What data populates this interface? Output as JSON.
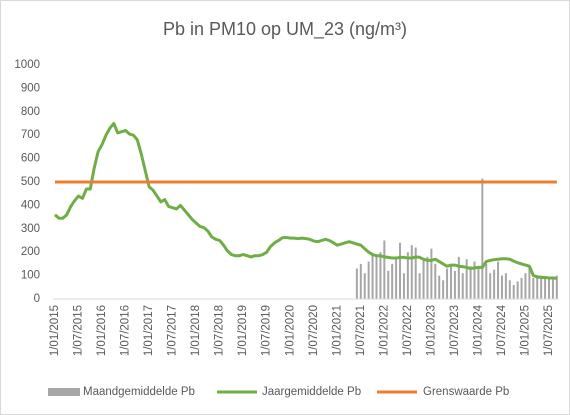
{
  "chart_data": {
    "type": "combo",
    "title": "Pb in PM10 op UM_23 (ng/m³)",
    "legend": "bottom",
    "ylim": [
      0,
      1000
    ],
    "yticks": [
      0,
      100,
      200,
      300,
      400,
      500,
      600,
      700,
      800,
      900,
      1000
    ],
    "grid": false,
    "categories": [
      "1/01/2015",
      null,
      null,
      null,
      null,
      null,
      "1/07/2015",
      null,
      null,
      null,
      null,
      null,
      "1/01/2016",
      null,
      null,
      null,
      null,
      null,
      "1/07/2016",
      null,
      null,
      null,
      null,
      null,
      "1/01/2017",
      null,
      null,
      null,
      null,
      null,
      "1/07/2017",
      null,
      null,
      null,
      null,
      null,
      "1/01/2018",
      null,
      null,
      null,
      null,
      null,
      "1/07/2018",
      null,
      null,
      null,
      null,
      null,
      "1/01/2019",
      null,
      null,
      null,
      null,
      null,
      "1/07/2019",
      null,
      null,
      null,
      null,
      null,
      "1/01/2020",
      null,
      null,
      null,
      null,
      null,
      "1/07/2020",
      null,
      null,
      null,
      null,
      null,
      "1/01/2021",
      null,
      null,
      null,
      null,
      null,
      "1/07/2021",
      null,
      null,
      null,
      null,
      null,
      "1/01/2022",
      null,
      null,
      null,
      null,
      null,
      "1/07/2022",
      null,
      null,
      null,
      null,
      null,
      "1/01/2023",
      null,
      null,
      null,
      null,
      null,
      "1/07/2023",
      null,
      null,
      null,
      null,
      null,
      "1/01/2024",
      null,
      null,
      null,
      null,
      null,
      "1/07/2024",
      null,
      null,
      null,
      null,
      null,
      "1/01/2025",
      null,
      null,
      null,
      null,
      null,
      "1/07/2025",
      null,
      null
    ],
    "series": [
      {
        "name": "Maandgemiddelde Pb",
        "type": "bar",
        "color": "#a6a6a6",
        "values": [
          null,
          null,
          null,
          null,
          null,
          null,
          null,
          null,
          null,
          null,
          null,
          null,
          null,
          null,
          null,
          null,
          null,
          null,
          null,
          null,
          null,
          null,
          null,
          null,
          null,
          null,
          null,
          null,
          null,
          null,
          null,
          null,
          null,
          null,
          null,
          null,
          null,
          null,
          null,
          null,
          null,
          null,
          null,
          null,
          null,
          null,
          null,
          null,
          null,
          null,
          null,
          null,
          null,
          null,
          null,
          null,
          null,
          null,
          null,
          null,
          null,
          null,
          null,
          null,
          null,
          null,
          null,
          null,
          null,
          null,
          null,
          null,
          null,
          null,
          null,
          null,
          null,
          130,
          150,
          110,
          160,
          190,
          180,
          200,
          250,
          120,
          150,
          180,
          240,
          110,
          200,
          230,
          220,
          110,
          170,
          180,
          215,
          150,
          100,
          80,
          130,
          140,
          120,
          180,
          110,
          170,
          140,
          160,
          130,
          515,
          150,
          110,
          125,
          160,
          100,
          110,
          80,
          60,
          75,
          90,
          110,
          140,
          90,
          95,
          100,
          90,
          85,
          95,
          100
        ]
      },
      {
        "name": "Jaargemiddelde Pb",
        "type": "line",
        "color": "#70ad47",
        "values": [
          360,
          345,
          345,
          360,
          395,
          420,
          440,
          430,
          470,
          470,
          560,
          630,
          660,
          700,
          730,
          750,
          710,
          715,
          720,
          705,
          700,
          680,
          620,
          550,
          480,
          465,
          440,
          415,
          425,
          395,
          390,
          385,
          400,
          380,
          360,
          340,
          325,
          310,
          305,
          290,
          265,
          255,
          250,
          230,
          205,
          190,
          185,
          185,
          190,
          185,
          180,
          185,
          185,
          190,
          200,
          225,
          240,
          250,
          262,
          263,
          260,
          260,
          258,
          260,
          258,
          255,
          248,
          245,
          250,
          255,
          250,
          240,
          230,
          235,
          240,
          245,
          240,
          235,
          230,
          215,
          200,
          190,
          185,
          185,
          180,
          178,
          175,
          175,
          178,
          178,
          175,
          175,
          180,
          178,
          170,
          165,
          165,
          170,
          160,
          150,
          140,
          145,
          145,
          140,
          138,
          135,
          130,
          133,
          135,
          135,
          160,
          165,
          168,
          170,
          172,
          172,
          170,
          162,
          155,
          150,
          145,
          140,
          100,
          95,
          92,
          92,
          90,
          90,
          88
        ]
      },
      {
        "name": "Grenswaarde Pb",
        "type": "line",
        "color": "#ed7d31",
        "values": [
          500,
          500,
          500,
          500,
          500,
          500,
          500,
          500,
          500,
          500,
          500,
          500,
          500,
          500,
          500,
          500,
          500,
          500,
          500,
          500,
          500,
          500,
          500,
          500,
          500,
          500,
          500,
          500,
          500,
          500,
          500,
          500,
          500,
          500,
          500,
          500,
          500,
          500,
          500,
          500,
          500,
          500,
          500,
          500,
          500,
          500,
          500,
          500,
          500,
          500,
          500,
          500,
          500,
          500,
          500,
          500,
          500,
          500,
          500,
          500,
          500,
          500,
          500,
          500,
          500,
          500,
          500,
          500,
          500,
          500,
          500,
          500,
          500,
          500,
          500,
          500,
          500,
          500,
          500,
          500,
          500,
          500,
          500,
          500,
          500,
          500,
          500,
          500,
          500,
          500,
          500,
          500,
          500,
          500,
          500,
          500,
          500,
          500,
          500,
          500,
          500,
          500,
          500,
          500,
          500,
          500,
          500,
          500,
          500,
          500,
          500,
          500,
          500,
          500,
          500,
          500,
          500,
          500,
          500,
          500,
          500,
          500,
          500,
          500,
          500,
          500,
          500,
          500,
          500
        ]
      }
    ]
  }
}
